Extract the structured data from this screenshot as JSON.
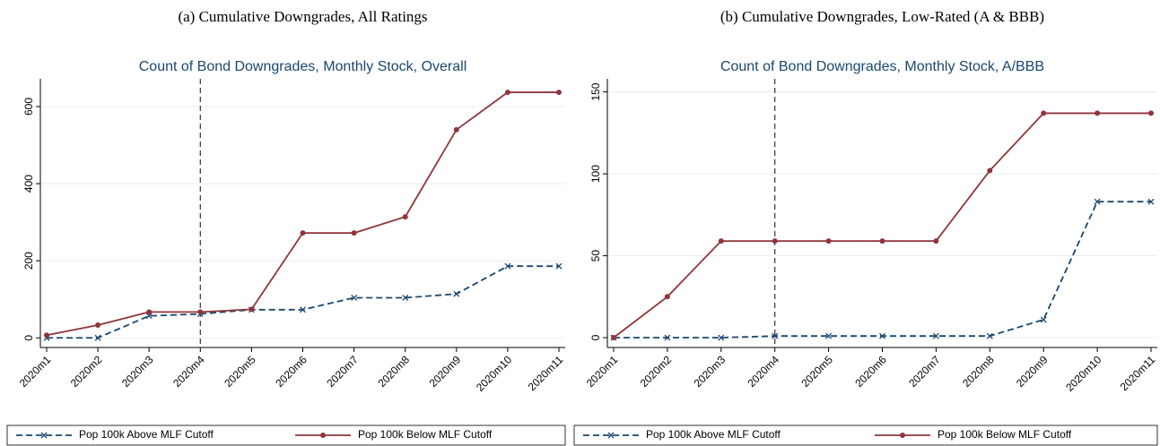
{
  "chart_data": [
    {
      "type": "line",
      "caption": "(a) Cumulative Downgrades, All Ratings",
      "title": "Count of Bond Downgrades, Monthly Stock, Overall",
      "categories": [
        "2020m1",
        "2020m2",
        "2020m3",
        "2020m4",
        "2020m5",
        "2020m6",
        "2020m7",
        "2020m8",
        "2020m9",
        "2020m10",
        "2020m11"
      ],
      "series": [
        {
          "name": "Pop 100k Above MLF Cutoff",
          "color": "#1a476f",
          "marker": "x",
          "dash": true,
          "values": [
            0,
            0,
            57,
            62,
            73,
            73,
            104,
            104,
            114,
            186,
            186
          ]
        },
        {
          "name": "Pop 100k Below MLF Cutoff",
          "color": "#90353b",
          "marker": "circle",
          "dash": false,
          "values": [
            7,
            33,
            67,
            67,
            74,
            272,
            272,
            314,
            540,
            637,
            637
          ]
        }
      ],
      "ylim": [
        -25,
        672
      ],
      "yticks": [
        0,
        200,
        400,
        600
      ],
      "grid": true,
      "vline": 3,
      "legend": "bottom"
    },
    {
      "type": "line",
      "caption": "(b) Cumulative Downgrades, Low-Rated (A & BBB)",
      "title": "Count of Bond Downgrades, Monthly Stock, A/BBB",
      "categories": [
        "2020m1",
        "2020m2",
        "2020m3",
        "2020m4",
        "2020m5",
        "2020m6",
        "2020m7",
        "2020m8",
        "2020m9",
        "2020m10",
        "2020m11"
      ],
      "series": [
        {
          "name": "Pop 100k Above MLF Cutoff",
          "color": "#1a476f",
          "marker": "x",
          "dash": true,
          "values": [
            0,
            0,
            0,
            1,
            1,
            1,
            1,
            1,
            11,
            83,
            83
          ]
        },
        {
          "name": "Pop 100k Below MLF Cutoff",
          "color": "#90353b",
          "marker": "circle",
          "dash": false,
          "values": [
            0,
            25,
            59,
            59,
            59,
            59,
            59,
            102,
            137,
            137,
            137
          ]
        }
      ],
      "ylim": [
        -6,
        158
      ],
      "yticks": [
        0,
        50,
        100,
        150
      ],
      "grid": true,
      "vline": 3,
      "legend": "bottom"
    }
  ]
}
